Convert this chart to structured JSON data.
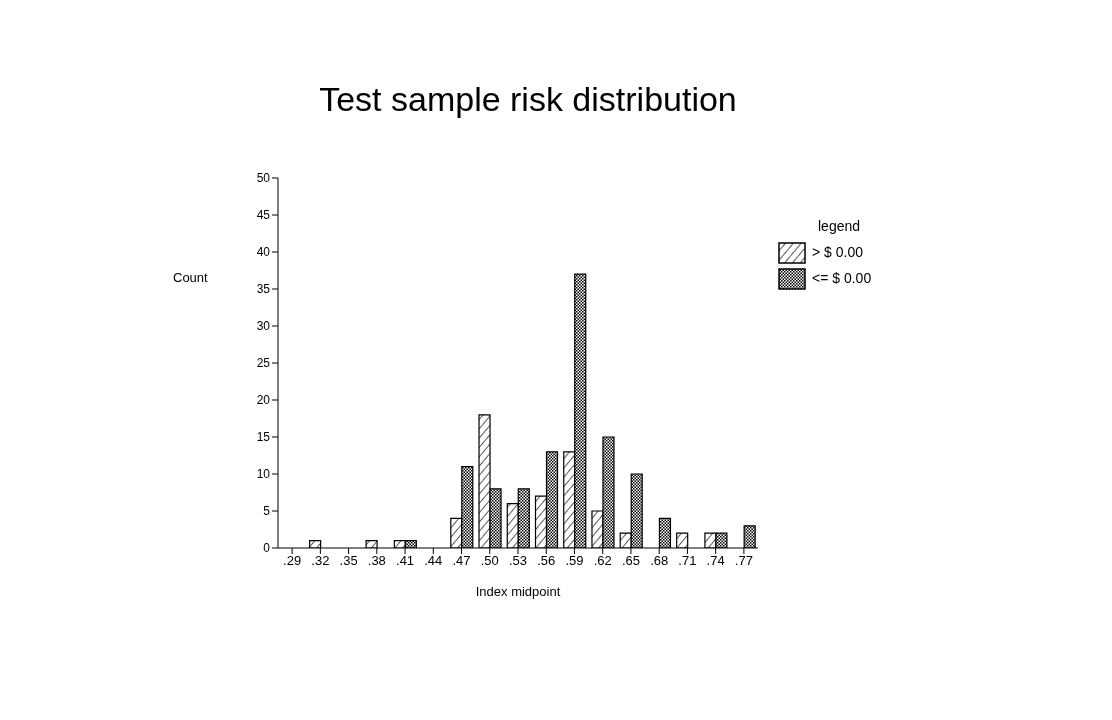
{
  "chart_data": {
    "type": "bar",
    "title": "Test sample risk distribution",
    "xlabel": "Index midpoint",
    "ylabel": "Count",
    "legend_title": "legend",
    "categories": [
      ".29",
      ".32",
      ".35",
      ".38",
      ".41",
      ".44",
      ".47",
      ".50",
      ".53",
      ".56",
      ".59",
      ".62",
      ".65",
      ".68",
      ".71",
      ".74",
      ".77"
    ],
    "series": [
      {
        "name": "> $ 0.00",
        "color": "#000000",
        "values": [
          0,
          1,
          0,
          1,
          1,
          0,
          4,
          18,
          6,
          7,
          13,
          5,
          2,
          0,
          2,
          2,
          0
        ]
      },
      {
        "name": "<= $ 0.00",
        "color": "#000000",
        "values": [
          0,
          0,
          0,
          0,
          1,
          0,
          11,
          8,
          8,
          13,
          37,
          15,
          10,
          4,
          0,
          2,
          3
        ]
      }
    ],
    "ylim": [
      0,
      50
    ],
    "yticks": [
      0,
      5,
      10,
      15,
      20,
      25,
      30,
      35,
      40,
      45,
      50
    ],
    "grid": false,
    "legend": "top right"
  }
}
